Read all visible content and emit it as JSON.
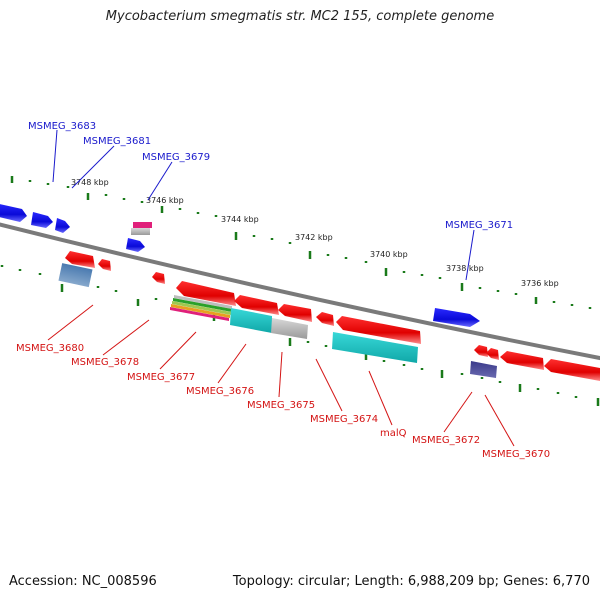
{
  "title": "Mycobacterium smegmatis str. MC2 155, complete genome",
  "footer": {
    "accession": "Accession: NC_008596",
    "stats": "Topology: circular; Length: 6,988,209 bp; Genes: 6,770"
  },
  "colors": {
    "forward_strand": "#1f1fe6",
    "reverse_strand": "#e60f0f",
    "backbone": "#7a7a7a",
    "tick": "#1a7a1a",
    "label_blue": "#1a1acc",
    "label_red": "#d41414"
  },
  "ticks": [
    "3748 kbp",
    "3746 kbp",
    "3744 kbp",
    "3742 kbp",
    "3740 kbp",
    "3738 kbp",
    "3736 kbp"
  ],
  "labels_forward": [
    "MSMEG_3683",
    "MSMEG_3681",
    "MSMEG_3679",
    "MSMEG_3671"
  ],
  "labels_reverse": [
    "MSMEG_3680",
    "MSMEG_3678",
    "MSMEG_3677",
    "MSMEG_3676",
    "MSMEG_3675",
    "MSMEG_3674",
    "malQ",
    "MSMEG_3672",
    "MSMEG_3670"
  ]
}
